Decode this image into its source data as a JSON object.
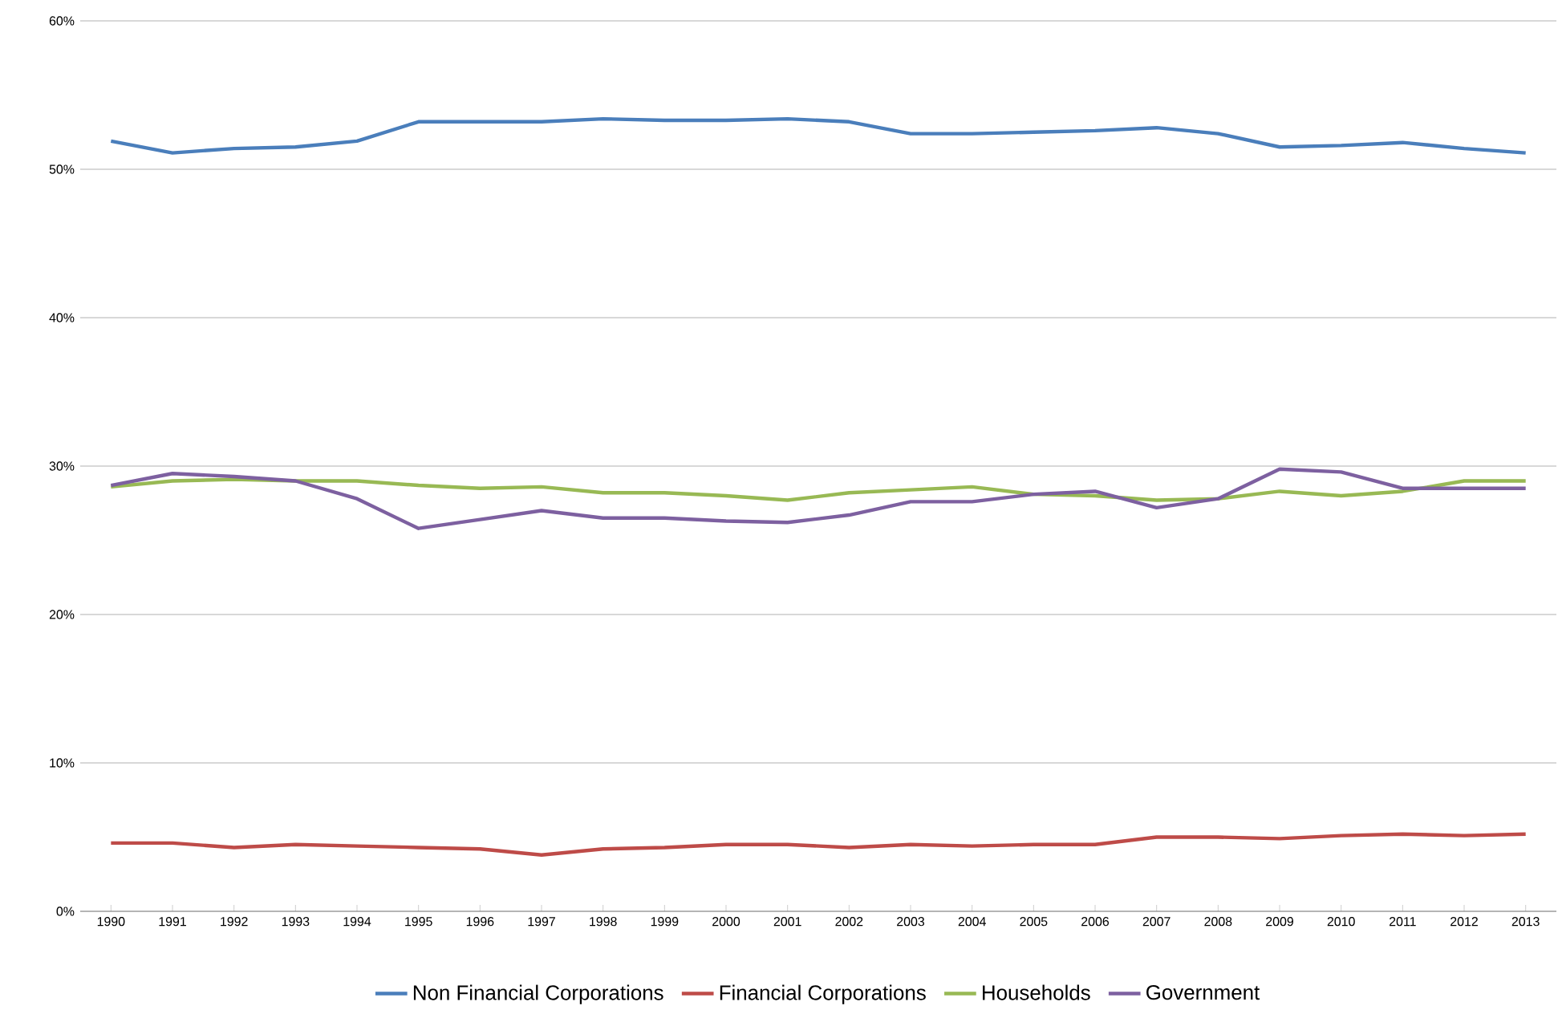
{
  "chart_data": {
    "type": "line",
    "categories": [
      "1990",
      "1991",
      "1992",
      "1993",
      "1994",
      "1995",
      "1996",
      "1997",
      "1998",
      "1999",
      "2000",
      "2001",
      "2002",
      "2003",
      "2004",
      "2005",
      "2006",
      "2007",
      "2008",
      "2009",
      "2010",
      "2011",
      "2012",
      "2013"
    ],
    "series": [
      {
        "name": "Non Financial Corporations",
        "color": "#4a7ebb",
        "values": [
          51.9,
          51.1,
          51.4,
          51.5,
          51.9,
          53.2,
          53.2,
          53.2,
          53.4,
          53.3,
          53.3,
          53.4,
          53.2,
          52.4,
          52.4,
          52.5,
          52.6,
          52.8,
          52.4,
          51.5,
          51.6,
          51.8,
          51.4,
          51.1
        ]
      },
      {
        "name": "Financial Corporations",
        "color": "#be4b48",
        "values": [
          4.6,
          4.6,
          4.3,
          4.5,
          4.4,
          4.3,
          4.2,
          3.8,
          4.2,
          4.3,
          4.5,
          4.5,
          4.3,
          4.5,
          4.4,
          4.5,
          4.5,
          5.0,
          5.0,
          4.9,
          5.1,
          5.2,
          5.1,
          5.2
        ]
      },
      {
        "name": "Households",
        "color": "#98b954",
        "values": [
          28.6,
          29.0,
          29.1,
          29.0,
          29.0,
          28.7,
          28.5,
          28.6,
          28.2,
          28.2,
          28.0,
          27.7,
          28.2,
          28.4,
          28.6,
          28.1,
          28.0,
          27.7,
          27.8,
          28.3,
          28.0,
          28.3,
          29.0,
          29.0
        ]
      },
      {
        "name": "Government",
        "color": "#7d60a0",
        "values": [
          28.7,
          29.5,
          29.3,
          29.0,
          27.8,
          25.8,
          26.4,
          27.0,
          26.5,
          26.5,
          26.3,
          26.2,
          26.7,
          27.6,
          27.6,
          28.1,
          28.3,
          27.2,
          27.8,
          29.8,
          29.6,
          28.5,
          28.5,
          28.5
        ]
      }
    ],
    "ylim": [
      0,
      60
    ],
    "yticks": [
      {
        "value": 0,
        "label": "0%"
      },
      {
        "value": 10,
        "label": "10%"
      },
      {
        "value": 20,
        "label": "20%"
      },
      {
        "value": 30,
        "label": "30%"
      },
      {
        "value": 40,
        "label": "40%"
      },
      {
        "value": 50,
        "label": "50%"
      },
      {
        "value": 60,
        "label": "60%"
      }
    ],
    "grid": "y",
    "legend": "bottom",
    "marker": "none",
    "line_style": "solid"
  }
}
